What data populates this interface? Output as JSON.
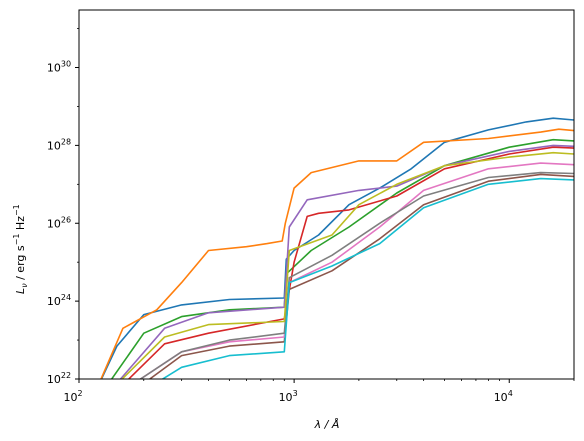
{
  "chart_data": {
    "type": "line",
    "title": "",
    "xlabel": "λ / Å",
    "ylabel_parts": {
      "L": "L",
      "nu": "ν",
      "unit_a": " / erg s",
      "exp1": "−1",
      "unit_b": " Hz",
      "exp2": "−1"
    },
    "xscale": "log",
    "yscale": "log",
    "xlim": [
      100,
      20000
    ],
    "ylim": [
      1e+22,
      3e+31
    ],
    "grid": false,
    "legend": "none",
    "x_ticks": [
      {
        "value": 100,
        "base": "10",
        "exp": "2"
      },
      {
        "value": 1000,
        "base": "10",
        "exp": "3"
      },
      {
        "value": 10000,
        "base": "10",
        "exp": "4"
      }
    ],
    "y_ticks": [
      {
        "value": 1e+22,
        "base": "10",
        "exp": "22"
      },
      {
        "value": 1e+24,
        "base": "10",
        "exp": "24"
      },
      {
        "value": 1e+26,
        "base": "10",
        "exp": "26"
      },
      {
        "value": 1e+28,
        "base": "10",
        "exp": "28"
      },
      {
        "value": 1e+30,
        "base": "10",
        "exp": "30"
      }
    ],
    "series": [
      {
        "color": "#1f77b4",
        "points": [
          [
            120,
            5e+21
          ],
          [
            150,
            7e+22
          ],
          [
            200,
            4.5e+23
          ],
          [
            300,
            8e+23
          ],
          [
            500,
            1.1e+24
          ],
          [
            900,
            1.2e+24
          ],
          [
            920,
            1.2e+25
          ],
          [
            1000,
            2e+25
          ],
          [
            1300,
            5e+25
          ],
          [
            1800,
            3e+26
          ],
          [
            2500,
            8e+26
          ],
          [
            3500,
            2.5e+27
          ],
          [
            5000,
            1.2e+28
          ],
          [
            8000,
            2.5e+28
          ],
          [
            12000,
            4e+28
          ],
          [
            16000,
            5e+28
          ],
          [
            20000,
            4.5e+28
          ]
        ]
      },
      {
        "color": "#ff7f0e",
        "points": [
          [
            120,
            5e+21
          ],
          [
            160,
            2e+23
          ],
          [
            230,
            6e+23
          ],
          [
            300,
            3e+24
          ],
          [
            400,
            2e+25
          ],
          [
            600,
            2.5e+25
          ],
          [
            750,
            3e+25
          ],
          [
            880,
            3.5e+25
          ],
          [
            910,
            1e+26
          ],
          [
            1000,
            8e+26
          ],
          [
            1200,
            2e+27
          ],
          [
            2000,
            4e+27
          ],
          [
            3000,
            4e+27
          ],
          [
            4000,
            1.2e+28
          ],
          [
            8000,
            1.5e+28
          ],
          [
            14000,
            2.2e+28
          ],
          [
            17000,
            2.6e+28
          ],
          [
            20000,
            2.4e+28
          ]
        ]
      },
      {
        "color": "#2ca02c",
        "points": [
          [
            130,
            5e+21
          ],
          [
            200,
            1.5e+23
          ],
          [
            300,
            4e+23
          ],
          [
            500,
            6e+23
          ],
          [
            900,
            7e+23
          ],
          [
            920,
            5e+24
          ],
          [
            1200,
            2e+25
          ],
          [
            1800,
            8e+25
          ],
          [
            3000,
            6e+26
          ],
          [
            5000,
            3e+27
          ],
          [
            10000,
            9e+27
          ],
          [
            16000,
            1.4e+28
          ],
          [
            20000,
            1.3e+28
          ]
        ]
      },
      {
        "color": "#d62728",
        "points": [
          [
            150,
            5e+21
          ],
          [
            250,
            8e+22
          ],
          [
            400,
            1.5e+23
          ],
          [
            900,
            3.5e+23
          ],
          [
            1000,
            1e+25
          ],
          [
            1150,
            1.5e+26
          ],
          [
            1300,
            1.8e+26
          ],
          [
            1800,
            2.2e+26
          ],
          [
            3000,
            5e+26
          ],
          [
            5000,
            2.5e+27
          ],
          [
            10000,
            6e+27
          ],
          [
            16000,
            9e+27
          ],
          [
            20000,
            8.5e+27
          ]
        ]
      },
      {
        "color": "#9467bd",
        "points": [
          [
            140,
            5e+21
          ],
          [
            250,
            2e+23
          ],
          [
            400,
            5e+23
          ],
          [
            900,
            7e+23
          ],
          [
            950,
            8e+25
          ],
          [
            1150,
            4e+26
          ],
          [
            2000,
            7e+26
          ],
          [
            3000,
            9e+26
          ],
          [
            5000,
            3e+27
          ],
          [
            10000,
            7e+27
          ],
          [
            16000,
            1e+28
          ],
          [
            20000,
            9.5e+27
          ]
        ]
      },
      {
        "color": "#8c564b",
        "points": [
          [
            180,
            5e+21
          ],
          [
            300,
            4e+22
          ],
          [
            500,
            7e+22
          ],
          [
            900,
            9e+22
          ],
          [
            950,
            2e+24
          ],
          [
            1500,
            6e+24
          ],
          [
            2500,
            4e+25
          ],
          [
            4000,
            3e+26
          ],
          [
            8000,
            1.2e+27
          ],
          [
            14000,
            1.8e+27
          ],
          [
            20000,
            1.6e+27
          ]
        ]
      },
      {
        "color": "#e377c2",
        "points": [
          [
            160,
            5e+21
          ],
          [
            300,
            5e+22
          ],
          [
            500,
            9e+22
          ],
          [
            900,
            1.2e+23
          ],
          [
            950,
            3e+24
          ],
          [
            1500,
            1e+25
          ],
          [
            2500,
            8e+25
          ],
          [
            4000,
            7e+26
          ],
          [
            8000,
            2.5e+27
          ],
          [
            14000,
            3.5e+27
          ],
          [
            20000,
            3.2e+27
          ]
        ]
      },
      {
        "color": "#7f7f7f",
        "points": [
          [
            160,
            5e+21
          ],
          [
            300,
            5e+22
          ],
          [
            500,
            1e+23
          ],
          [
            900,
            1.5e+23
          ],
          [
            950,
            4e+24
          ],
          [
            1500,
            1.5e+25
          ],
          [
            2500,
            1e+26
          ],
          [
            4000,
            5e+26
          ],
          [
            8000,
            1.5e+27
          ],
          [
            14000,
            2e+27
          ],
          [
            20000,
            1.9e+27
          ]
        ]
      },
      {
        "color": "#bcbd22",
        "points": [
          [
            140,
            5e+21
          ],
          [
            250,
            1.2e+23
          ],
          [
            400,
            2.5e+23
          ],
          [
            900,
            3e+23
          ],
          [
            950,
            2e+25
          ],
          [
            1500,
            5e+25
          ],
          [
            2000,
            3e+26
          ],
          [
            3000,
            1e+27
          ],
          [
            5000,
            3e+27
          ],
          [
            10000,
            5e+27
          ],
          [
            16000,
            6.5e+27
          ],
          [
            20000,
            6e+27
          ]
        ]
      },
      {
        "color": "#17becf",
        "points": [
          [
            200,
            5e+21
          ],
          [
            300,
            2e+22
          ],
          [
            500,
            4e+22
          ],
          [
            900,
            5e+22
          ],
          [
            950,
            3e+24
          ],
          [
            1500,
            8e+24
          ],
          [
            2500,
            3e+25
          ],
          [
            4000,
            2.5e+26
          ],
          [
            8000,
            1e+27
          ],
          [
            14000,
            1.4e+27
          ],
          [
            20000,
            1.3e+27
          ]
        ]
      }
    ]
  }
}
